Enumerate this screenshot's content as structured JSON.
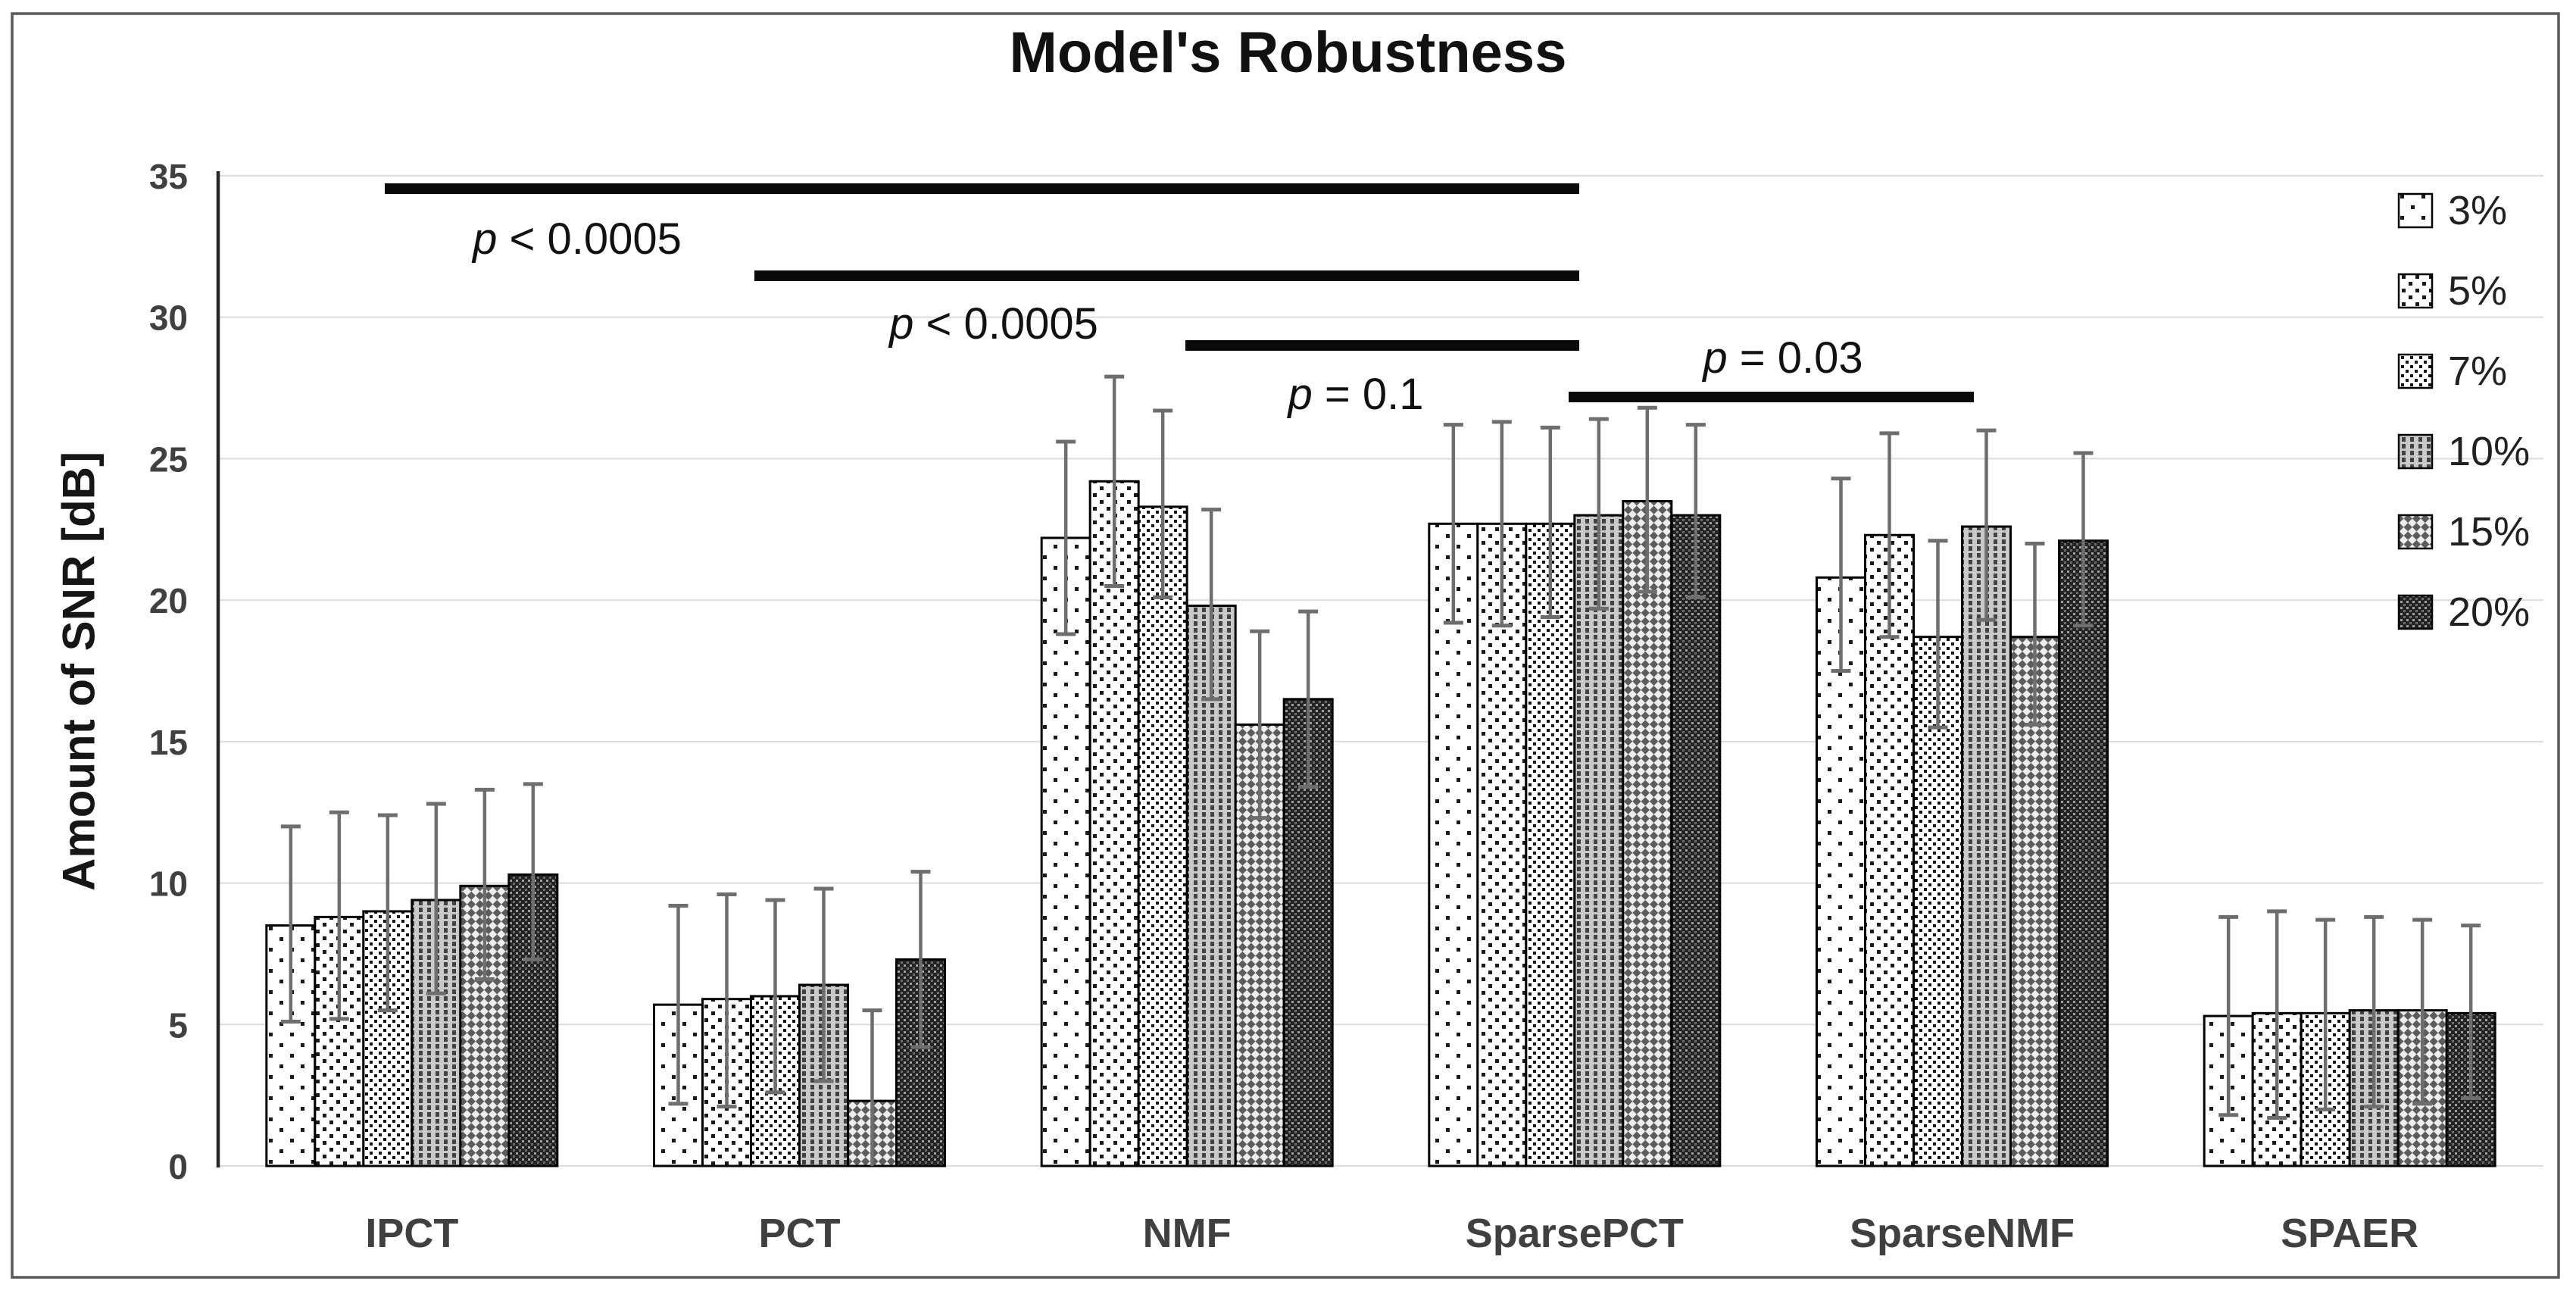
{
  "title": "Model's Robustness",
  "chart_data": {
    "type": "bar",
    "title": "Model's Robustness",
    "xlabel": "",
    "ylabel": "Amount of SNR [dB]",
    "ylim": [
      0,
      35
    ],
    "yticks": [
      0,
      5,
      10,
      15,
      20,
      25,
      30,
      35
    ],
    "grid": true,
    "legend_position": "right",
    "categories": [
      "IPCT",
      "PCT",
      "NMF",
      "SparsePCT",
      "SparseNMF",
      "SPAER"
    ],
    "series": [
      {
        "name": "3%",
        "pattern": "dots-sparse",
        "values": [
          8.5,
          5.7,
          22.2,
          22.7,
          20.8,
          5.3
        ],
        "whisker_top": [
          12.0,
          9.2,
          25.6,
          26.2,
          24.3,
          8.8
        ],
        "whisker_bottom": [
          5.1,
          2.2,
          18.8,
          19.2,
          17.5,
          1.8
        ]
      },
      {
        "name": "5%",
        "pattern": "dots-light",
        "values": [
          8.8,
          5.9,
          24.2,
          22.7,
          22.3,
          5.4
        ],
        "whisker_top": [
          12.5,
          9.6,
          27.9,
          26.3,
          25.9,
          9.0
        ],
        "whisker_bottom": [
          5.2,
          2.1,
          20.5,
          19.1,
          18.7,
          1.7
        ]
      },
      {
        "name": "7%",
        "pattern": "dots-medium",
        "values": [
          9.0,
          6.0,
          23.3,
          22.7,
          18.7,
          5.4
        ],
        "whisker_top": [
          12.4,
          9.4,
          26.7,
          26.1,
          22.1,
          8.7
        ],
        "whisker_bottom": [
          5.5,
          2.6,
          20.1,
          19.4,
          15.5,
          2.0
        ]
      },
      {
        "name": "10%",
        "pattern": "gray-vertical-dash",
        "values": [
          9.4,
          6.4,
          19.8,
          23.0,
          22.6,
          5.5
        ],
        "whisker_top": [
          12.8,
          9.8,
          23.2,
          26.4,
          26.0,
          8.8
        ],
        "whisker_bottom": [
          6.1,
          3.0,
          16.5,
          19.7,
          19.3,
          2.1
        ]
      },
      {
        "name": "15%",
        "pattern": "gray-diamond-crosshatch",
        "values": [
          9.9,
          2.3,
          15.6,
          23.5,
          18.7,
          5.5
        ],
        "whisker_top": [
          13.3,
          5.5,
          18.9,
          26.8,
          22.0,
          8.7
        ],
        "whisker_bottom": [
          6.6,
          0,
          12.3,
          20.3,
          15.6,
          2.2
        ]
      },
      {
        "name": "20%",
        "pattern": "dark-dense-dots",
        "values": [
          10.3,
          7.3,
          16.5,
          23.0,
          22.1,
          5.4
        ],
        "whisker_top": [
          13.5,
          10.4,
          19.6,
          26.2,
          25.2,
          8.5
        ],
        "whisker_bottom": [
          7.3,
          4.2,
          13.4,
          20.1,
          19.1,
          2.4
        ]
      }
    ],
    "significance_brackets": [
      {
        "label": "p < 0.0005",
        "from": "IPCT",
        "to": "SparsePCT",
        "x1": 508,
        "x2": 2085,
        "y": 249,
        "label_x": 762,
        "label_y": 335
      },
      {
        "label": "p < 0.0005",
        "from": "PCT",
        "to": "SparsePCT",
        "x1": 996,
        "x2": 2085,
        "y": 364,
        "label_x": 1312,
        "label_y": 447
      },
      {
        "label": "p = 0.1",
        "from": "NMF",
        "to": "SparsePCT",
        "x1": 1565,
        "x2": 2085,
        "y": 456,
        "label_x": 1790,
        "label_y": 540
      },
      {
        "label": "p = 0.03",
        "from": "SparsePCT",
        "to": "SparseNMF",
        "x1": 2071,
        "x2": 2606,
        "y": 524,
        "label_x": 2354,
        "label_y": 492
      }
    ],
    "colors": {
      "bar_outline": "#000000",
      "error_bar": "#6e6e6e",
      "gridline": "#dcdcdc",
      "y_axis": "#262626",
      "bracket": "#0a0a0a",
      "tick_label": "#404040",
      "frame_border": "#595959"
    }
  }
}
